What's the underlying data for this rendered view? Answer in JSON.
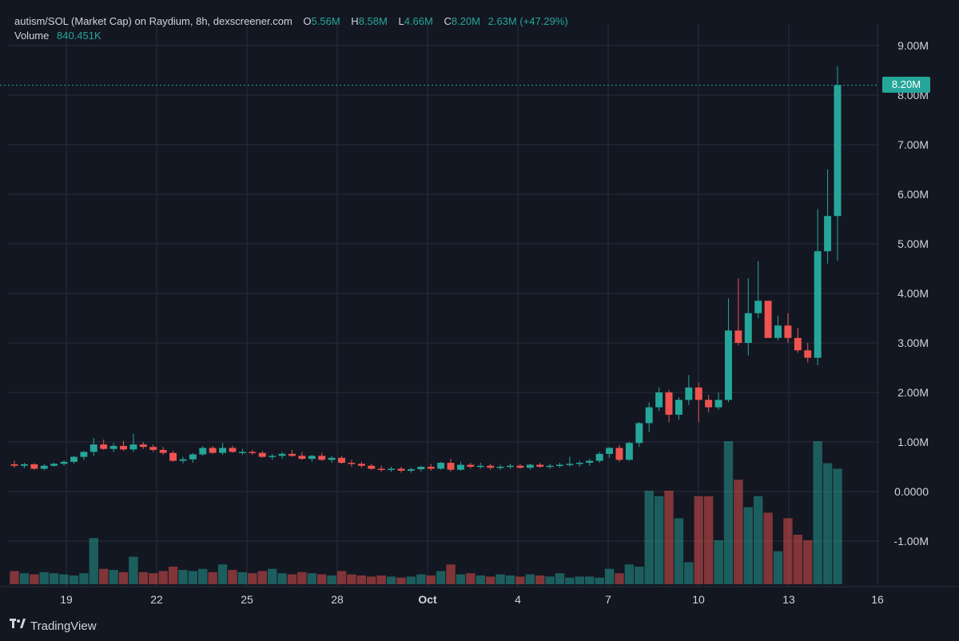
{
  "legend": {
    "symbol": "autism/SOL (Market Cap) on Raydium, 8h, dexscreener.com",
    "o_label": "O",
    "o_value": "5.56M",
    "h_label": "H",
    "h_value": "8.58M",
    "l_label": "L",
    "l_value": "4.66M",
    "c_label": "C",
    "c_value": "8.20M",
    "change": "2.63M (+47.29%)",
    "volume_label": "Volume",
    "volume_value": "840.451K"
  },
  "last_price_tag": "8.20M",
  "brand": "TradingView",
  "colors": {
    "up": "#26a69a",
    "down": "#ef5350",
    "background": "#131722",
    "grid": "#2a2e39"
  },
  "chart_data": {
    "type": "candlestick",
    "y_axis": {
      "ticks": [
        "9.00M",
        "8.00M",
        "7.00M",
        "6.00M",
        "5.00M",
        "4.00M",
        "3.00M",
        "2.00M",
        "1.00M",
        "0.0000",
        "-1.00M"
      ],
      "range": [
        -1.6,
        9.6
      ]
    },
    "x_axis": {
      "ticks": [
        "19",
        "22",
        "25",
        "28",
        "Oct",
        "4",
        "7",
        "10",
        "13",
        "16"
      ]
    },
    "last_price": 8.2,
    "grid": true,
    "candles": [
      [
        0.55,
        0.62,
        0.48,
        0.52
      ],
      [
        0.52,
        0.58,
        0.47,
        0.55
      ],
      [
        0.55,
        0.57,
        0.44,
        0.46
      ],
      [
        0.46,
        0.55,
        0.43,
        0.52
      ],
      [
        0.52,
        0.58,
        0.5,
        0.56
      ],
      [
        0.56,
        0.63,
        0.52,
        0.6
      ],
      [
        0.6,
        0.72,
        0.56,
        0.7
      ],
      [
        0.7,
        0.82,
        0.64,
        0.8
      ],
      [
        0.8,
        1.08,
        0.72,
        0.95
      ],
      [
        0.95,
        1.05,
        0.84,
        0.86
      ],
      [
        0.86,
        0.98,
        0.8,
        0.92
      ],
      [
        0.92,
        1.02,
        0.82,
        0.85
      ],
      [
        0.85,
        1.17,
        0.8,
        0.95
      ],
      [
        0.95,
        1.0,
        0.86,
        0.9
      ],
      [
        0.9,
        0.95,
        0.8,
        0.84
      ],
      [
        0.84,
        0.9,
        0.74,
        0.78
      ],
      [
        0.78,
        0.82,
        0.6,
        0.62
      ],
      [
        0.62,
        0.7,
        0.57,
        0.65
      ],
      [
        0.65,
        0.78,
        0.58,
        0.75
      ],
      [
        0.75,
        0.92,
        0.72,
        0.88
      ],
      [
        0.88,
        0.92,
        0.76,
        0.78
      ],
      [
        0.78,
        0.98,
        0.74,
        0.88
      ],
      [
        0.88,
        0.92,
        0.78,
        0.8
      ],
      [
        0.8,
        0.86,
        0.74,
        0.8
      ],
      [
        0.8,
        0.84,
        0.74,
        0.78
      ],
      [
        0.78,
        0.82,
        0.68,
        0.7
      ],
      [
        0.7,
        0.76,
        0.64,
        0.72
      ],
      [
        0.72,
        0.8,
        0.66,
        0.76
      ],
      [
        0.76,
        0.84,
        0.7,
        0.72
      ],
      [
        0.72,
        0.8,
        0.64,
        0.66
      ],
      [
        0.66,
        0.74,
        0.6,
        0.72
      ],
      [
        0.72,
        0.78,
        0.62,
        0.64
      ],
      [
        0.64,
        0.72,
        0.58,
        0.68
      ],
      [
        0.68,
        0.72,
        0.56,
        0.58
      ],
      [
        0.58,
        0.64,
        0.5,
        0.56
      ],
      [
        0.56,
        0.6,
        0.48,
        0.52
      ],
      [
        0.52,
        0.56,
        0.44,
        0.46
      ],
      [
        0.46,
        0.52,
        0.4,
        0.44
      ],
      [
        0.44,
        0.5,
        0.4,
        0.46
      ],
      [
        0.46,
        0.5,
        0.38,
        0.42
      ],
      [
        0.42,
        0.48,
        0.38,
        0.45
      ],
      [
        0.45,
        0.52,
        0.4,
        0.5
      ],
      [
        0.5,
        0.56,
        0.42,
        0.46
      ],
      [
        0.46,
        0.6,
        0.44,
        0.58
      ],
      [
        0.58,
        0.66,
        0.4,
        0.44
      ],
      [
        0.44,
        0.6,
        0.42,
        0.54
      ],
      [
        0.54,
        0.58,
        0.46,
        0.5
      ],
      [
        0.5,
        0.58,
        0.46,
        0.52
      ],
      [
        0.52,
        0.56,
        0.44,
        0.48
      ],
      [
        0.48,
        0.54,
        0.44,
        0.5
      ],
      [
        0.5,
        0.56,
        0.46,
        0.52
      ],
      [
        0.52,
        0.56,
        0.46,
        0.48
      ],
      [
        0.48,
        0.56,
        0.44,
        0.54
      ],
      [
        0.54,
        0.58,
        0.48,
        0.5
      ],
      [
        0.5,
        0.56,
        0.46,
        0.52
      ],
      [
        0.52,
        0.58,
        0.48,
        0.54
      ],
      [
        0.54,
        0.7,
        0.5,
        0.56
      ],
      [
        0.56,
        0.62,
        0.5,
        0.58
      ],
      [
        0.58,
        0.66,
        0.52,
        0.62
      ],
      [
        0.62,
        0.8,
        0.58,
        0.76
      ],
      [
        0.76,
        0.9,
        0.68,
        0.88
      ],
      [
        0.88,
        0.94,
        0.6,
        0.64
      ],
      [
        0.64,
        1.0,
        0.62,
        0.98
      ],
      [
        0.98,
        1.4,
        0.9,
        1.38
      ],
      [
        1.38,
        1.8,
        1.2,
        1.7
      ],
      [
        1.7,
        2.1,
        1.62,
        2.0
      ],
      [
        2.0,
        2.05,
        1.4,
        1.55
      ],
      [
        1.55,
        1.9,
        1.45,
        1.85
      ],
      [
        1.85,
        2.35,
        1.75,
        2.1
      ],
      [
        2.1,
        2.2,
        1.4,
        1.85
      ],
      [
        1.85,
        1.95,
        1.6,
        1.7
      ],
      [
        1.7,
        2.0,
        1.65,
        1.85
      ],
      [
        1.85,
        3.9,
        1.8,
        3.25
      ],
      [
        3.25,
        4.3,
        2.95,
        3.0
      ],
      [
        3.0,
        4.3,
        2.75,
        3.6
      ],
      [
        3.6,
        4.65,
        3.5,
        3.85
      ],
      [
        3.85,
        3.85,
        3.1,
        3.1
      ],
      [
        3.1,
        3.55,
        3.05,
        3.35
      ],
      [
        3.35,
        3.6,
        3.0,
        3.1
      ],
      [
        3.1,
        3.3,
        2.8,
        2.85
      ],
      [
        2.85,
        3.0,
        2.6,
        2.7
      ],
      [
        2.7,
        5.7,
        2.55,
        4.85
      ],
      [
        4.85,
        6.5,
        4.6,
        5.56
      ],
      [
        5.56,
        8.58,
        4.66,
        8.2
      ]
    ],
    "volumes": [
      0.012,
      0.01,
      0.009,
      0.011,
      0.01,
      0.009,
      0.008,
      0.01,
      0.042,
      0.014,
      0.013,
      0.011,
      0.025,
      0.011,
      0.01,
      0.012,
      0.016,
      0.013,
      0.012,
      0.014,
      0.011,
      0.018,
      0.013,
      0.011,
      0.01,
      0.012,
      0.014,
      0.01,
      0.009,
      0.011,
      0.01,
      0.009,
      0.008,
      0.012,
      0.009,
      0.008,
      0.007,
      0.008,
      0.007,
      0.006,
      0.007,
      0.009,
      0.008,
      0.012,
      0.018,
      0.009,
      0.01,
      0.008,
      0.007,
      0.009,
      0.008,
      0.007,
      0.009,
      0.008,
      0.007,
      0.01,
      0.006,
      0.007,
      0.007,
      0.006,
      0.014,
      0.01,
      0.018,
      0.016,
      0.085,
      0.08,
      0.085,
      0.06,
      0.02,
      0.08,
      0.08,
      0.04,
      0.13,
      0.095,
      0.07,
      0.08,
      0.065,
      0.03,
      0.06,
      0.045,
      0.04,
      0.13,
      0.11,
      0.105
    ]
  }
}
